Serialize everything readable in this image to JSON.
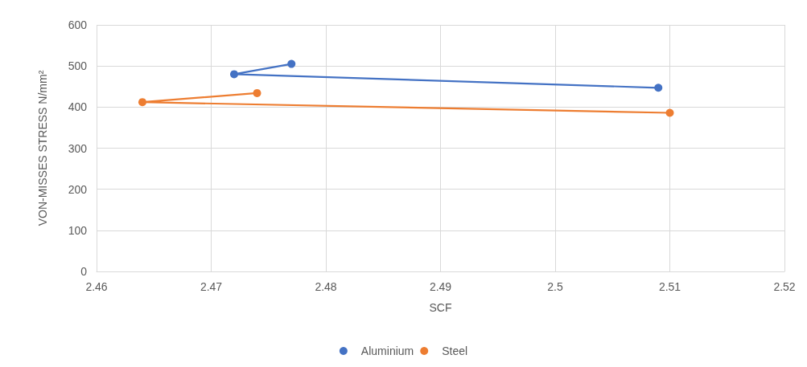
{
  "chart_data": {
    "type": "line",
    "xlabel": "SCF",
    "ylabel": "VON-MISSES STRESS N/mm²",
    "xlim": [
      2.46,
      2.52
    ],
    "xticks": [
      2.46,
      2.47,
      2.48,
      2.49,
      2.5,
      2.51,
      2.52
    ],
    "ylim": [
      0,
      600
    ],
    "yticks": [
      0,
      100,
      200,
      300,
      400,
      500,
      600
    ],
    "series": [
      {
        "name": "Aluminium",
        "color": "#4472c4",
        "x": [
          2.477,
          2.472,
          2.509
        ],
        "values": [
          505,
          480,
          447
        ]
      },
      {
        "name": "Steel",
        "color": "#ed7d31",
        "x": [
          2.474,
          2.464,
          2.51
        ],
        "values": [
          434,
          412,
          386
        ]
      }
    ],
    "grid": true,
    "legend": "bottom",
    "marker": "circle",
    "line_style": "solid"
  }
}
